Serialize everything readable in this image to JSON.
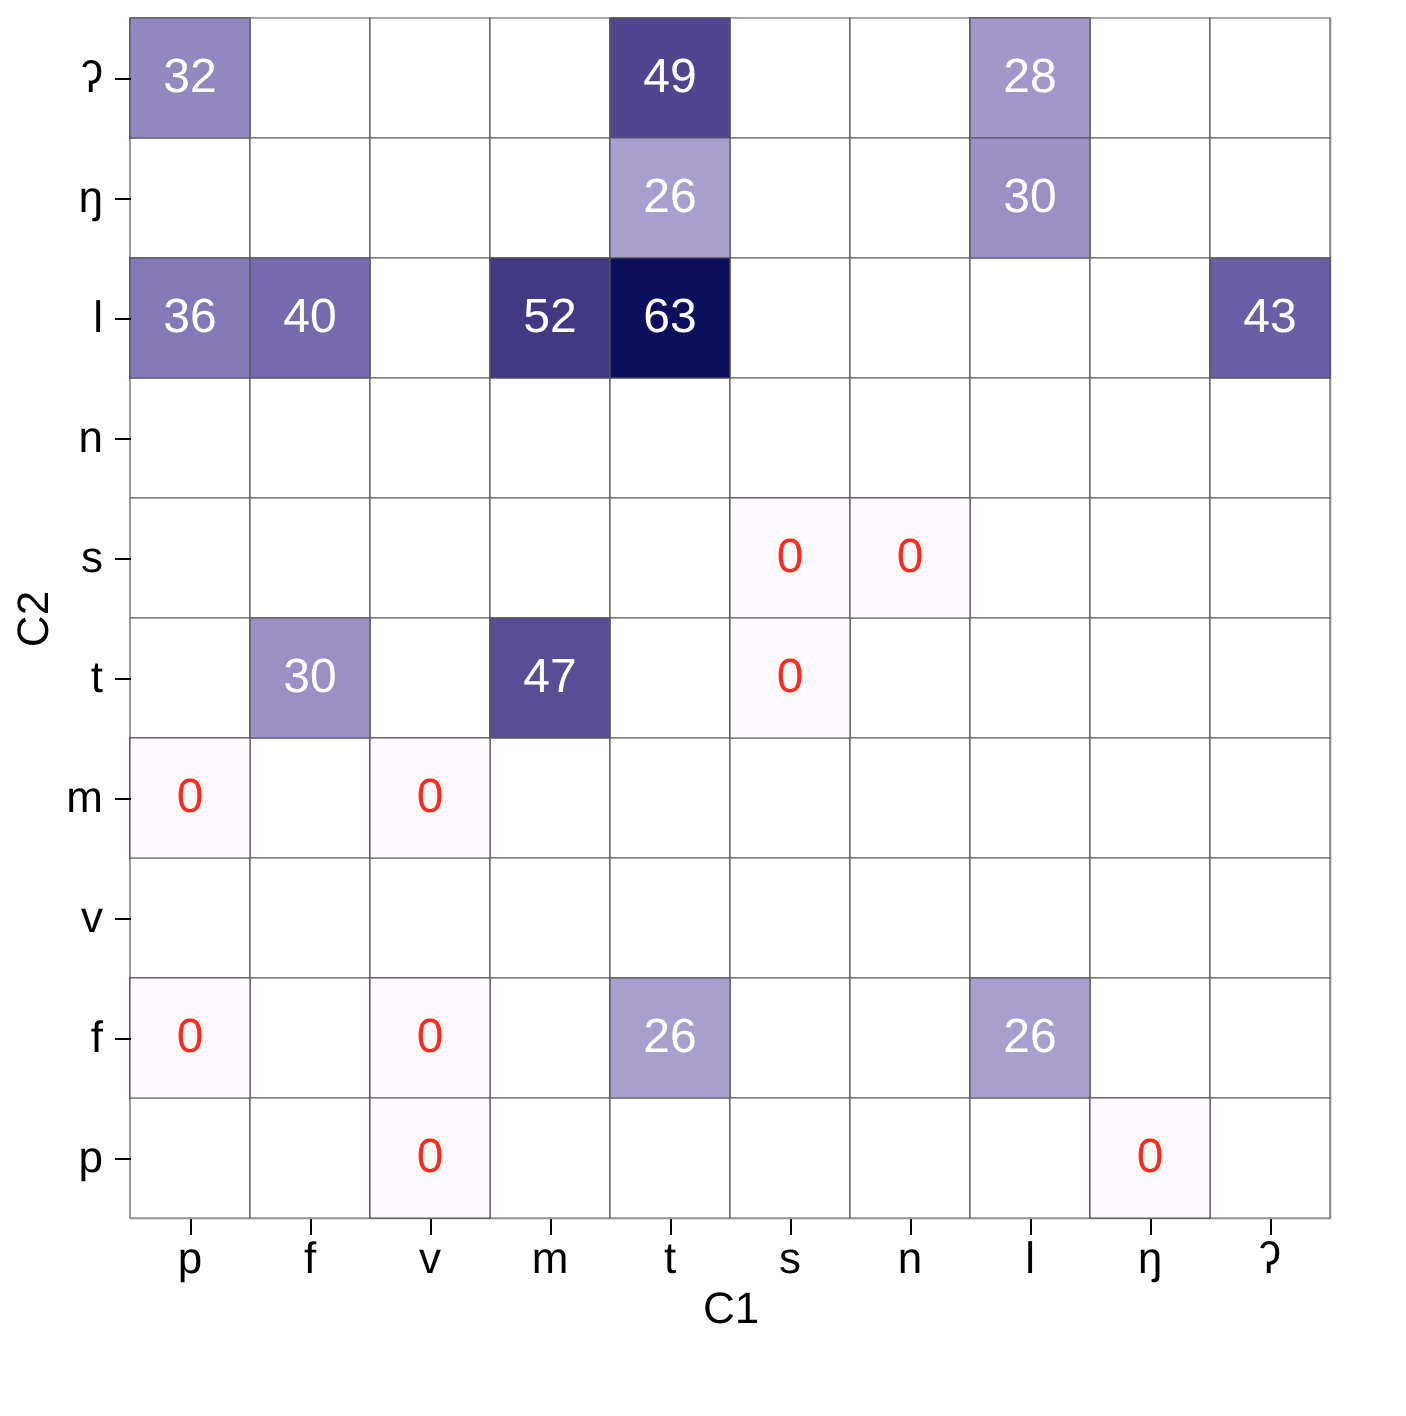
{
  "chart_data": {
    "type": "heatmap",
    "data_labels": true,
    "xlabel": "C1",
    "ylabel": "C2",
    "categories": [
      "p",
      "f",
      "v",
      "m",
      "t",
      "s",
      "n",
      "l",
      "ŋ",
      "ʔ"
    ],
    "y_categories": [
      "ʔ",
      "ŋ",
      "l",
      "n",
      "s",
      "t",
      "m",
      "v",
      "f",
      "p"
    ],
    "cells": [
      [
        32,
        null,
        null,
        null,
        49,
        null,
        null,
        28,
        null,
        null
      ],
      [
        null,
        null,
        null,
        null,
        26,
        null,
        null,
        30,
        null,
        null
      ],
      [
        36,
        40,
        null,
        52,
        63,
        null,
        null,
        null,
        null,
        43
      ],
      [
        null,
        null,
        null,
        null,
        null,
        null,
        null,
        null,
        null,
        null
      ],
      [
        null,
        null,
        null,
        null,
        null,
        0,
        0,
        null,
        null,
        null
      ],
      [
        null,
        30,
        null,
        47,
        null,
        0,
        null,
        null,
        null,
        null
      ],
      [
        0,
        null,
        0,
        null,
        null,
        null,
        null,
        null,
        null,
        null
      ],
      [
        null,
        null,
        null,
        null,
        null,
        null,
        null,
        null,
        null,
        null
      ],
      [
        0,
        null,
        0,
        null,
        26,
        null,
        null,
        26,
        null,
        null
      ],
      [
        null,
        null,
        0,
        null,
        null,
        null,
        null,
        null,
        0,
        null
      ]
    ]
  }
}
